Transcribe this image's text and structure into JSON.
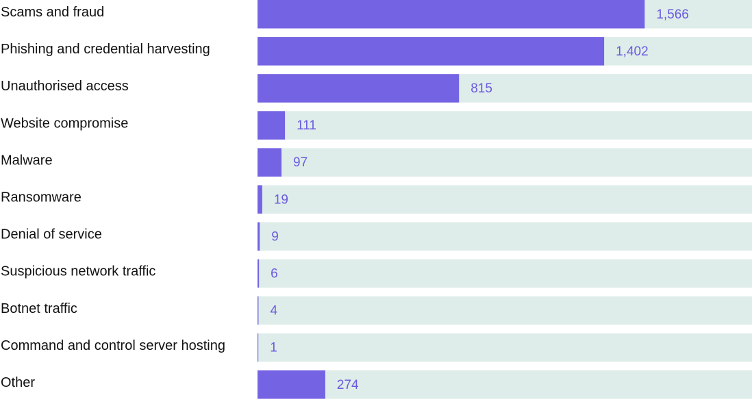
{
  "chart_data": {
    "type": "bar",
    "orientation": "horizontal",
    "title": "",
    "xlabel": "",
    "ylabel": "",
    "categories": [
      "Scams and fraud",
      "Phishing and credential harvesting",
      "Unauthorised access",
      "Website compromise",
      "Malware",
      "Ransomware",
      "Denial of service",
      "Suspicious network traffic",
      "Botnet traffic",
      "Command and control server hosting",
      "Other"
    ],
    "values": [
      1566,
      1402,
      815,
      111,
      97,
      19,
      9,
      6,
      4,
      1,
      274
    ],
    "value_labels": [
      "1,566",
      "1,402",
      "815",
      "111",
      "97",
      "19",
      "9",
      "6",
      "4",
      "1",
      "274"
    ],
    "xlim": [
      0,
      2000
    ],
    "grid": false,
    "legend": "none"
  },
  "colors": {
    "bar": "#7463e3",
    "track": "#deede9",
    "value_text": "#6a5ae0",
    "label_text": "#111111"
  }
}
